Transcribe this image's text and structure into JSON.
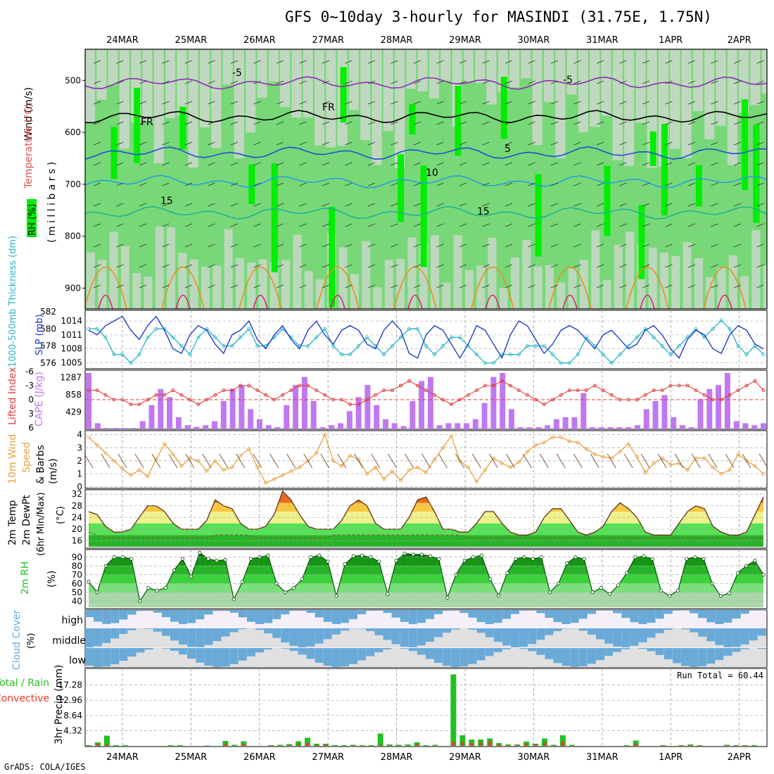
{
  "title": "GFS 0~10day 3-hourly for MASINDI (31.75E, 1.75N)",
  "footer": "GrADS: COLA/IGES",
  "dates": [
    "24MAR",
    "25MAR",
    "26MAR",
    "27MAR",
    "28MAR",
    "29MAR",
    "30MAR",
    "31MAR",
    "1APR",
    "2APR"
  ],
  "colors": {
    "rh_light": "#c8d8c8",
    "rh_mid": "#78d878",
    "rh_high": "#00ee00",
    "slp": "#1432c8",
    "thickness": "#28b4c8",
    "li": "#e03c3c",
    "cape": "#c078f0",
    "wind": "#e8a040",
    "temp": "#f0a020",
    "rain": "#22c022",
    "convective": "#e83c28",
    "cloud": "#6aaad8"
  },
  "panels": {
    "upper": {
      "wind_label": "Wind (m/s)",
      "temp_label": "Temperature (°C)",
      "rh_label": "RH (%)",
      "unit": "( m i l l i b a r s )",
      "contour_labels": [
        "-5",
        "-5",
        "FR",
        "FR",
        "5",
        "10",
        "15",
        "15"
      ]
    },
    "slp": {
      "thickness_label": "1000-500mb Thickness (dm)",
      "slp_label": "SLP (mb)"
    },
    "cape": {
      "li_label": "Lifted Index",
      "cape_label": "CAPE (J/kg)"
    },
    "wind10": {
      "label1": "10m Wind",
      "label2": "Speed",
      "label3": "(m/s)",
      "label4": "& Barbs"
    },
    "temp": {
      "label1": "2m Temp",
      "label2": "2m DewPt",
      "label3": "(6hr Min/Max)",
      "label4": "(°C)"
    },
    "rh": {
      "label1": "2m RH",
      "label2": "(%)"
    },
    "cloud": {
      "label1": "Cloud Cover",
      "label2": "(%)",
      "levels": [
        "high",
        "middle",
        "low"
      ]
    },
    "precip": {
      "label1": "Total / Rain",
      "label2": "Convective",
      "label3": "3hr Precip (mm)",
      "run_total": "Run Total = 60.44"
    }
  },
  "chart_data": [
    {
      "type": "heatmap",
      "ylabel": "millibars",
      "y_ticks": [
        500,
        600,
        700,
        800,
        900
      ],
      "ylim": [
        440,
        940
      ],
      "x_ticks": [
        "24MAR",
        "25MAR",
        "26MAR",
        "27MAR",
        "28MAR",
        "29MAR",
        "30MAR",
        "31MAR",
        "1APR",
        "2APR"
      ],
      "contours": [
        {
          "label": "-5",
          "level_mb": 505
        },
        {
          "label": "FR",
          "level_mb": 570
        },
        {
          "label": "5",
          "level_mb": 640
        },
        {
          "label": "10",
          "level_mb": 695
        },
        {
          "label": "15",
          "level_mb": 755
        }
      ]
    },
    {
      "type": "line",
      "series": [
        {
          "name": "SLP (mb)",
          "ylim": [
            1004,
            1016
          ],
          "y_ticks": [
            1005,
            1008,
            1011,
            1014
          ],
          "values": [
            1012,
            1011,
            1013,
            1014,
            1015,
            1012,
            1010,
            1013,
            1015,
            1012,
            1008,
            1007,
            1011,
            1013,
            1012,
            1009,
            1007,
            1011,
            1012,
            1014,
            1010,
            1008,
            1011,
            1013,
            1010,
            1008,
            1012,
            1014,
            1011,
            1009,
            1012,
            1013,
            1012,
            1009,
            1008,
            1012,
            1014,
            1012,
            1007,
            1006,
            1011,
            1013,
            1012,
            1009,
            1006,
            1009,
            1013,
            1012,
            1009,
            1006,
            1011,
            1014,
            1013,
            1010,
            1007,
            1009,
            1012,
            1013,
            1012,
            1010,
            1008,
            1011,
            1012,
            1010,
            1008,
            1009,
            1012,
            1013,
            1011,
            1008,
            1006,
            1010,
            1012,
            1011,
            1008,
            1007,
            1011,
            1013,
            1012,
            1009,
            1008
          ]
        },
        {
          "name": "1000-500mb Thickness (dm)",
          "ylim": [
            575.5,
            582
          ],
          "y_ticks": [
            576,
            578,
            580,
            582
          ],
          "values": [
            580,
            580,
            579,
            577,
            577,
            576,
            577,
            579,
            580,
            580,
            579,
            578,
            577,
            579,
            580,
            579,
            578,
            578,
            579,
            580,
            578,
            578,
            579,
            580,
            579,
            578,
            578,
            579,
            580,
            578,
            577,
            577,
            578,
            579,
            578,
            577,
            578,
            579,
            580,
            580,
            578,
            577,
            578,
            579,
            579,
            578,
            577,
            576,
            576,
            577,
            577,
            577,
            578,
            578,
            578,
            577,
            576,
            576,
            577,
            579,
            578,
            577,
            576,
            577,
            578,
            579,
            580,
            579,
            578,
            577,
            578,
            579,
            580,
            579,
            580,
            581,
            580,
            578,
            577,
            578,
            577
          ]
        }
      ]
    },
    {
      "type": "bar",
      "series": [
        {
          "name": "CAPE (J/kg)",
          "y_ticks": [
            429,
            858,
            1287
          ],
          "ylim": [
            0,
            1400
          ],
          "values": [
            1400,
            150,
            30,
            30,
            30,
            30,
            200,
            600,
            1000,
            800,
            300,
            100,
            60,
            100,
            200,
            700,
            1000,
            1100,
            500,
            250,
            100,
            50,
            600,
            1100,
            1300,
            700,
            50,
            100,
            150,
            450,
            800,
            1100,
            600,
            250,
            150,
            80,
            700,
            1200,
            1300,
            100,
            150,
            150,
            150,
            250,
            650,
            1300,
            1400,
            500,
            50,
            50,
            50,
            100,
            250,
            300,
            300,
            900,
            50,
            50,
            50,
            50,
            50,
            100,
            500,
            700,
            850,
            300,
            100,
            50,
            750,
            1000,
            1100,
            1400,
            200,
            150,
            100,
            150
          ]
        },
        {
          "name": "Lifted Index",
          "y_ticks": [
            -6,
            -3,
            0,
            3,
            6
          ],
          "ylim": [
            -6,
            6
          ],
          "values": [
            -2,
            -2,
            -1,
            0,
            0,
            1,
            1,
            0,
            -1,
            -1,
            -2,
            -1,
            0,
            1,
            0,
            -1,
            -2,
            -2,
            -3,
            -3,
            -2,
            -1,
            0,
            -1,
            -2,
            -3,
            -3,
            -2,
            -1,
            0,
            0,
            1,
            1,
            0,
            -1,
            -2,
            -2,
            -3,
            -4,
            -3,
            -2,
            -1,
            0,
            1,
            0,
            -1,
            -2,
            -3,
            -3,
            -4,
            -3,
            -2,
            -1,
            0,
            1,
            0,
            -1,
            -2,
            -2,
            -2,
            -3,
            -2,
            -1,
            0,
            0,
            0,
            -1,
            -2,
            -2,
            -3,
            -3,
            -3,
            -2,
            -1,
            0,
            0,
            -1,
            -2,
            -3,
            -4,
            -2
          ]
        }
      ]
    },
    {
      "type": "line",
      "ylabel": "(m/s)",
      "ylim": [
        0,
        4.2
      ],
      "y_ticks": [
        0,
        1,
        2,
        3,
        4
      ],
      "series": [
        {
          "name": "10m Wind Speed",
          "values": [
            3.8,
            3.2,
            2.6,
            2.0,
            1.4,
            0.9,
            1.3,
            0.8,
            2.1,
            3.3,
            2.5,
            1.6,
            2.2,
            2.0,
            1.2,
            2.0,
            1.3,
            1.5,
            2.4,
            2.9,
            1.5,
            0.3,
            0.6,
            0.9,
            1.2,
            1.5,
            2.0,
            2.6,
            4.0,
            2.0,
            1.6,
            2.4,
            2.1,
            1.0,
            1.5,
            0.6,
            1.2,
            0.5,
            1.3,
            1.5,
            1.1,
            2.1,
            3.0,
            3.9,
            2.0,
            1.5,
            0.4,
            1.3,
            2.2,
            1.8,
            1.5,
            1.9,
            2.7,
            3.2,
            3.4,
            3.8,
            3.8,
            3.5,
            3.4,
            2.9,
            2.5,
            2.3,
            2.2,
            2.7,
            3.3,
            2.3,
            1.1,
            1.8,
            2.2,
            1.7,
            1.8,
            1.3,
            2.2,
            2.2,
            1.5,
            1.0,
            1.3,
            2.5,
            2.0,
            1.6,
            1.0
          ]
        }
      ]
    },
    {
      "type": "area",
      "ylabel": "(°C)",
      "ylim": [
        14,
        33
      ],
      "y_ticks": [
        16,
        20,
        24,
        28,
        32
      ],
      "series": [
        {
          "name": "2m Temp",
          "values": [
            26,
            25,
            21,
            19,
            19,
            20,
            24,
            28,
            28,
            26,
            22,
            20,
            20,
            20,
            23,
            30,
            28,
            27,
            22,
            20,
            20,
            21,
            25,
            33,
            30,
            25,
            21,
            20,
            20,
            20,
            23,
            28,
            30,
            28,
            22,
            20,
            20,
            20,
            24,
            30,
            31,
            26,
            20,
            20,
            19,
            19,
            22,
            26,
            26,
            22,
            19,
            18,
            18,
            19,
            24,
            27,
            27,
            23,
            19,
            18,
            19,
            21,
            26,
            29,
            27,
            24,
            19,
            18,
            18,
            18,
            22,
            26,
            28,
            27,
            21,
            19,
            18,
            18,
            19,
            25,
            31
          ]
        },
        {
          "name": "2m DewPt",
          "values": [
            19,
            18,
            17,
            17,
            17,
            17,
            17,
            17,
            17,
            17,
            17,
            17,
            17,
            17,
            17,
            18,
            18,
            18,
            18,
            18,
            17,
            17,
            17,
            17,
            17,
            17,
            17,
            17,
            17,
            18,
            18,
            18,
            18,
            18,
            18,
            18,
            18,
            18,
            18,
            18,
            18,
            18,
            18,
            18,
            18,
            17,
            17,
            17,
            17,
            17,
            17,
            17,
            17,
            17,
            17,
            17,
            17,
            17,
            17,
            17,
            17,
            17,
            17,
            17,
            17,
            17,
            17,
            17,
            17,
            17,
            17,
            17,
            17,
            17,
            17,
            17,
            17,
            17,
            17,
            17,
            17
          ]
        }
      ]
    },
    {
      "type": "area",
      "ylabel": "(%)",
      "ylim": [
        33,
        97
      ],
      "y_ticks": [
        40,
        50,
        60,
        70,
        80,
        90
      ],
      "series": [
        {
          "name": "2m RH",
          "values": [
            62,
            50,
            80,
            90,
            90,
            88,
            40,
            55,
            52,
            55,
            75,
            88,
            68,
            95,
            88,
            86,
            87,
            42,
            62,
            88,
            90,
            92,
            60,
            50,
            55,
            65,
            90,
            92,
            85,
            46,
            82,
            91,
            92,
            90,
            85,
            48,
            86,
            94,
            93,
            93,
            91,
            88,
            44,
            70,
            86,
            90,
            92,
            65,
            46,
            72,
            88,
            90,
            88,
            90,
            50,
            60,
            83,
            90,
            88,
            50,
            55,
            48,
            58,
            72,
            90,
            91,
            88,
            52,
            46,
            52,
            88,
            90,
            88,
            60,
            46,
            49,
            72,
            80,
            86,
            70
          ]
        }
      ]
    },
    {
      "type": "bar",
      "series": [
        {
          "name": "Total / Rain",
          "ylabel": "3hr Precip (mm)",
          "y_ticks": [
            4.32,
            8.64,
            12.96,
            17.28
          ],
          "ylim": [
            0,
            21
          ],
          "values": [
            0.2,
            1.0,
            2.9,
            0.2,
            0.2,
            0,
            0,
            0,
            0,
            0.2,
            0.2,
            0,
            0,
            0.1,
            0,
            1.4,
            0.3,
            1.3,
            0,
            0,
            0.2,
            0.3,
            0.5,
            1.3,
            2.3,
            0.6,
            0.6,
            0.2,
            0.2,
            0.3,
            0.2,
            0.2,
            3.5,
            0.4,
            0.3,
            0.4,
            1.0,
            0.2,
            0.3,
            0,
            20.3,
            3.0,
            1.8,
            1.8,
            2.1,
            0.8,
            0.4,
            0.4,
            1.2,
            0.6,
            2.1,
            0.3,
            3.0,
            0.3,
            0,
            0,
            0,
            0,
            0,
            0.2,
            1.5,
            0,
            0,
            0.2,
            0,
            0.2,
            0.4,
            0.2,
            0,
            0,
            0.3,
            0.2,
            0.2,
            0.2,
            0
          ]
        },
        {
          "name": "Convective",
          "values": [
            0.1,
            0.6,
            0.5,
            0,
            0,
            0,
            0,
            0,
            0,
            0,
            0,
            0,
            0,
            0,
            0,
            0.5,
            0.1,
            0.5,
            0,
            0,
            0.1,
            0.1,
            0.2,
            0.7,
            0.8,
            0.3,
            0.3,
            0,
            0,
            0.1,
            0,
            0,
            0.4,
            0.1,
            0.1,
            0.1,
            0.5,
            0.1,
            0.1,
            0,
            1.1,
            1.2,
            0.8,
            1.0,
            1.4,
            0.4,
            0.2,
            0.2,
            0.7,
            0.3,
            1.0,
            0.1,
            1.2,
            0.1,
            0,
            0,
            0,
            0,
            0,
            0,
            0.6,
            0,
            0,
            0.1,
            0,
            0.1,
            0.2,
            0.1,
            0,
            0,
            0.1,
            0.1,
            0.1,
            0.1,
            0
          ]
        }
      ]
    }
  ]
}
